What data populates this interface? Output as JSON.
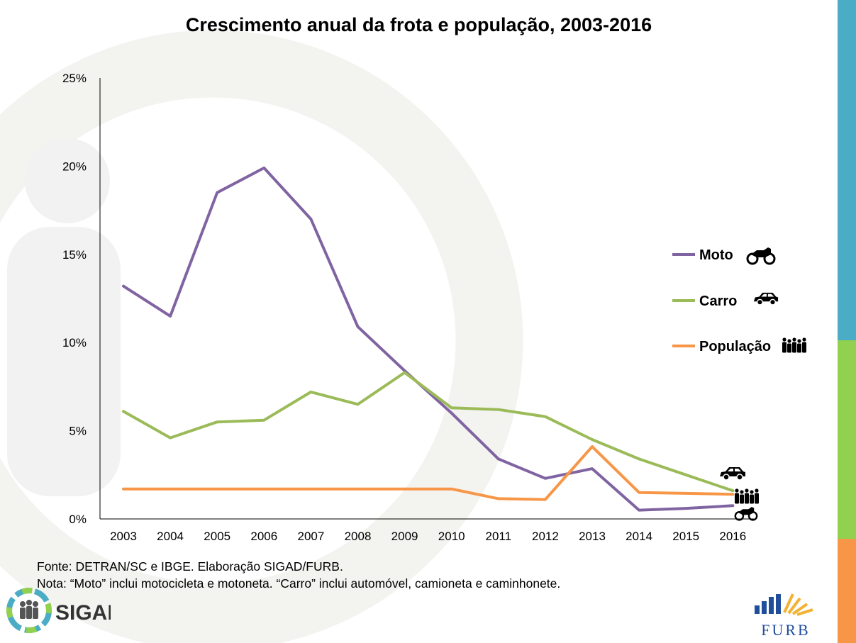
{
  "colors": {
    "moto": "#8064A2",
    "carro": "#9BBB59",
    "populacao": "#F79646",
    "stripe_blue": "#4BACC6",
    "stripe_green": "#92D050",
    "stripe_orange": "#F79646"
  },
  "footer": {
    "source": "Fonte: DETRAN/SC e IBGE. Elaboração SIGAD/FURB.",
    "note": "Nota: “Moto” inclui motocicleta e motoneta. “Carro” inclui automóvel, camioneta e caminhonete."
  },
  "logos": {
    "left": "SIGAD",
    "right": "FURB"
  },
  "chart_data": {
    "type": "line",
    "title": "Crescimento anual da frota e população, 2003-2016",
    "xlabel": "",
    "ylabel": "",
    "categories": [
      "2003",
      "2004",
      "2005",
      "2006",
      "2007",
      "2008",
      "2009",
      "2010",
      "2011",
      "2012",
      "2013",
      "2014",
      "2015",
      "2016"
    ],
    "ylim": [
      0,
      25
    ],
    "yticks": [
      0,
      5,
      10,
      15,
      20,
      25
    ],
    "ytick_labels": [
      "0%",
      "5%",
      "10%",
      "15%",
      "20%",
      "25%"
    ],
    "grid": false,
    "legend_position": "right",
    "series": [
      {
        "name": "Moto",
        "color_key": "moto",
        "icon": "motorcycle-icon",
        "values": [
          13.2,
          11.5,
          18.5,
          19.9,
          17.0,
          10.9,
          8.4,
          6.0,
          3.4,
          2.3,
          2.85,
          0.5,
          0.6,
          0.75
        ]
      },
      {
        "name": "Carro",
        "color_key": "carro",
        "icon": "car-icon",
        "values": [
          6.1,
          4.6,
          5.5,
          5.6,
          7.2,
          6.5,
          8.3,
          6.3,
          6.2,
          5.8,
          4.5,
          3.4,
          2.5,
          1.6
        ]
      },
      {
        "name": "População",
        "color_key": "populacao",
        "icon": "people-icon",
        "values": [
          1.7,
          1.7,
          1.7,
          1.7,
          1.7,
          1.7,
          1.7,
          1.7,
          1.15,
          1.1,
          4.1,
          1.5,
          1.45,
          1.4
        ]
      }
    ]
  }
}
